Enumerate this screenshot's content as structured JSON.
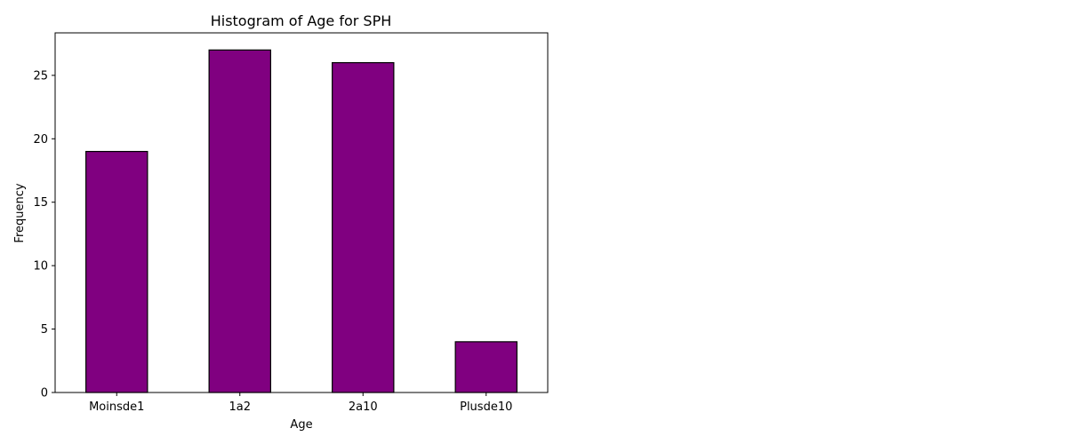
{
  "chart_data": {
    "type": "bar",
    "title": "Histogram of Age for SPH",
    "xlabel": "Age",
    "ylabel": "Frequency",
    "categories": [
      "Moinsde1",
      "1a2",
      "2a10",
      "Plusde10"
    ],
    "values": [
      19,
      27,
      26,
      4
    ],
    "ylim": [
      0,
      28.35
    ],
    "yticks": [
      0,
      5,
      10,
      15,
      20,
      25
    ],
    "bar_color": "#800080",
    "edge_color": "#000000",
    "grid": false,
    "legend": "none"
  }
}
